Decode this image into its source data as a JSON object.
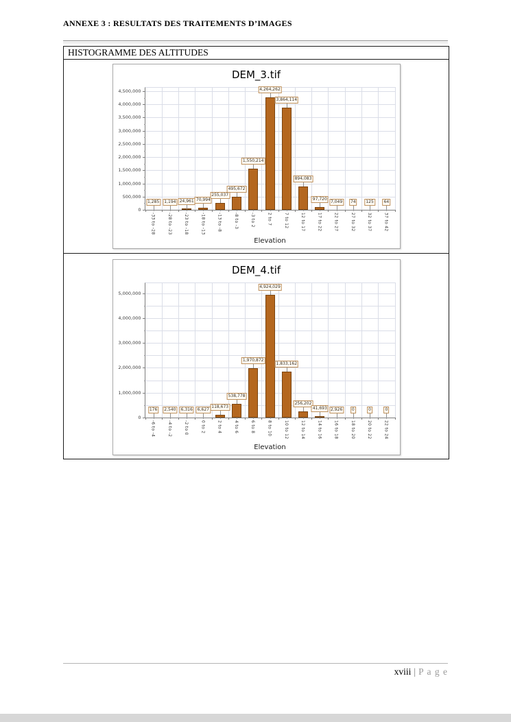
{
  "page": {
    "header": "ANNEXE 3 : RESULTATS DES TRAITEMENTS D’IMAGES",
    "section_title": "HISTOGRAMME DES ALTITUDES",
    "footer": {
      "page_number": "xviii",
      "separator": "|",
      "page_word": "P a g e"
    }
  },
  "chart_data": [
    {
      "type": "bar",
      "title": "DEM_3.tif",
      "xlabel": "Elevation",
      "ylabel": "",
      "categories": [
        "-33 to -28",
        "-28 to -23",
        "-23 to -18",
        "-18 to -13",
        "-13 to -8",
        "-8 to -3",
        "-3 to 2",
        "2 to 7",
        "7 to 12",
        "12 to 17",
        "17 to 22",
        "22 to 27",
        "27 to 32",
        "32 to 37",
        "37 to 42"
      ],
      "values": [
        1285,
        1194,
        24961,
        70994,
        255037,
        495672,
        1550214,
        4264262,
        3864114,
        894083,
        97720,
        7049,
        74,
        125,
        64
      ],
      "value_labels": [
        "1,285",
        "1,194",
        "24,961",
        "70,994",
        "255,037",
        "495,672",
        "1,550,214",
        "4,264,262",
        "3,864,114",
        "894,083",
        "97,720",
        "7,049",
        "74",
        "125",
        "64"
      ],
      "ylim": [
        0,
        4630000
      ],
      "ytick_label_step": 500000,
      "ytick_grid_step": 500000,
      "grid": true,
      "legend": "none",
      "colors": {
        "bar_fill": "#b4671f",
        "bar_border": "#7a430e",
        "label_box_border": "#bd8f5b",
        "grid_line": "#dadde7",
        "axis": "#7c7c7c"
      }
    },
    {
      "type": "bar",
      "title": "DEM_4.tif",
      "xlabel": "Elevation",
      "ylabel": "",
      "categories": [
        "-6 to -4",
        "-4 to -2",
        "-2 to 0",
        "0 to 2",
        "2 to 4",
        "4 to 6",
        "6 to 8",
        "8 to 10",
        "10 to 12",
        "12 to 14",
        "14 to 16",
        "16 to 18",
        "18 to 20",
        "20 to 22",
        "22 to 24"
      ],
      "values": [
        176,
        2540,
        6316,
        6627,
        118673,
        538778,
        1970872,
        4924029,
        1833162,
        256202,
        41693,
        2926,
        0,
        0,
        0
      ],
      "value_labels": [
        "176",
        "2,540",
        "6,316",
        "6,627",
        "118,673",
        "538,778",
        "1,970,872",
        "4,924,029",
        "1,833,162",
        "256,202",
        "41,693",
        "2,926",
        "0",
        "0",
        "0"
      ],
      "ylim": [
        0,
        5400000
      ],
      "ytick_label_step": 1000000,
      "ytick_grid_step": 500000,
      "grid": true,
      "legend": "none",
      "colors": {
        "bar_fill": "#b4671f",
        "bar_border": "#7a430e",
        "label_box_border": "#bd8f5b",
        "grid_line": "#dadde7",
        "axis": "#7c7c7c"
      }
    }
  ]
}
